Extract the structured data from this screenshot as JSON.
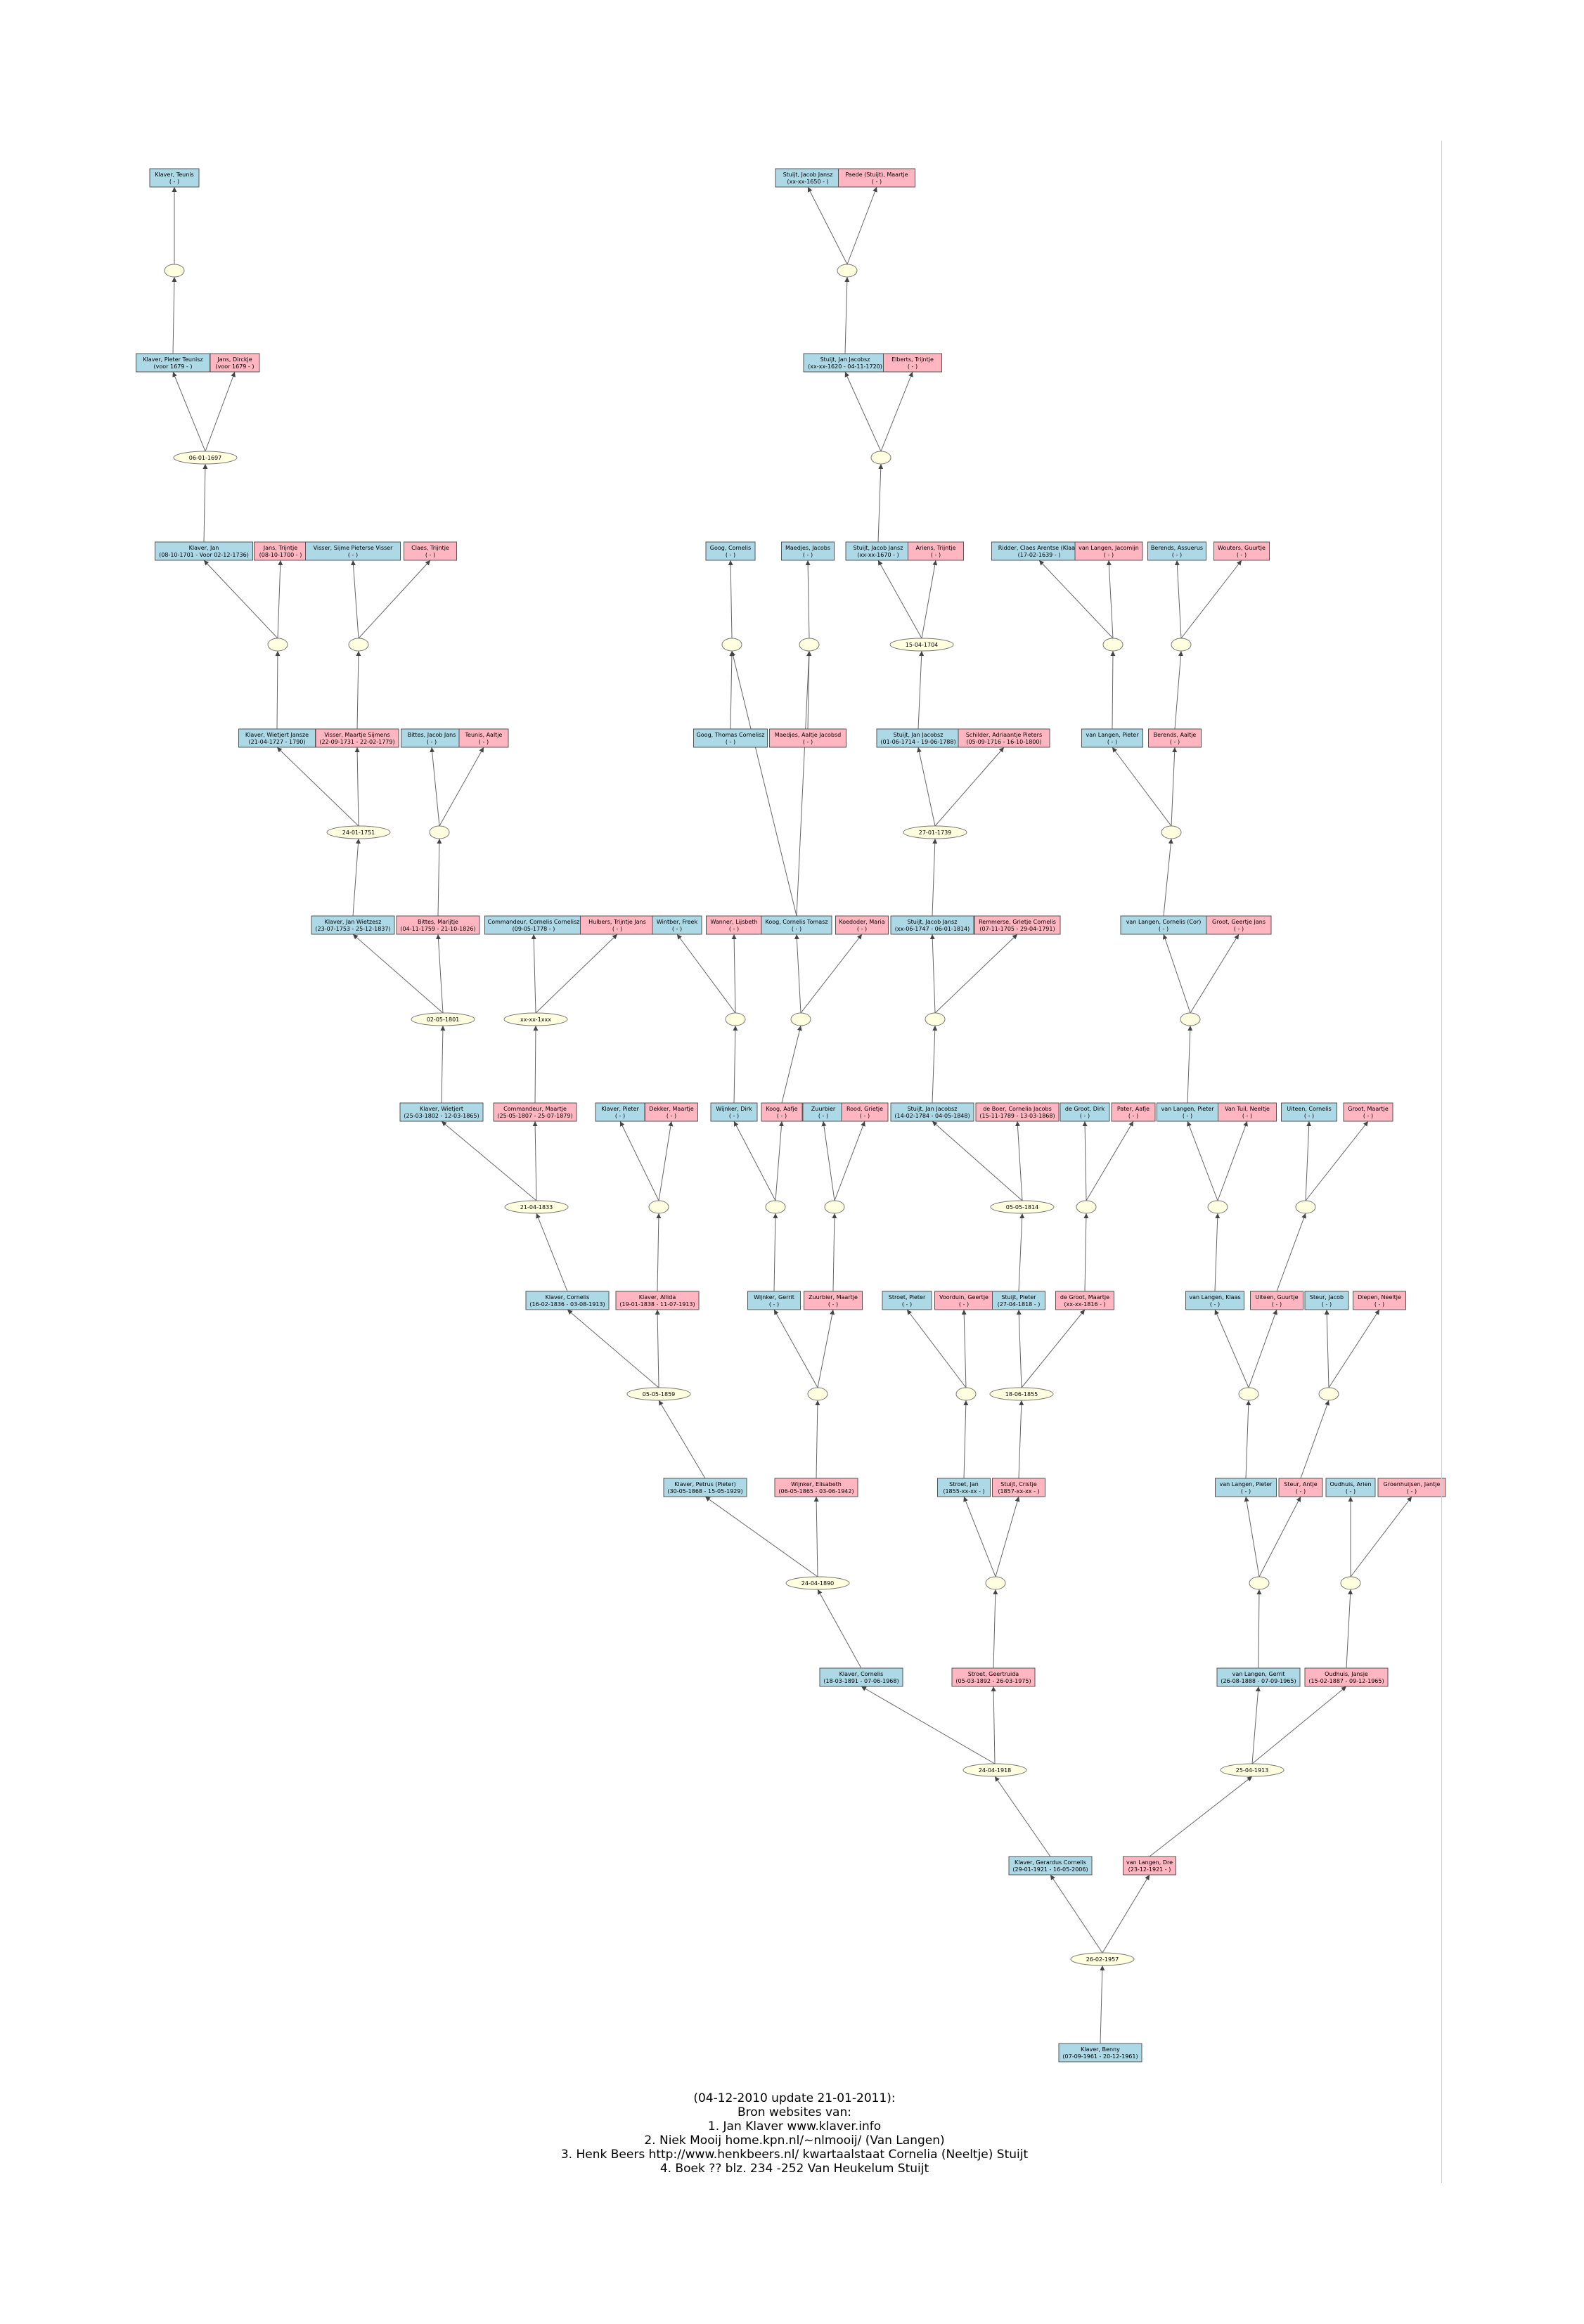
{
  "colors": {
    "male": "#add8e6",
    "female": "#ffb6c1",
    "union": "#ffffe0",
    "edge": "#666666"
  },
  "persons": [
    {
      "id": "p_teunis",
      "sex": "m",
      "name": "Klaver, Teunis",
      "dates": "( - )"
    },
    {
      "id": "p_pieter_t",
      "sex": "m",
      "name": "Klaver, Pieter Teunisz",
      "dates": "(voor 1679 - )"
    },
    {
      "id": "p_dirckje",
      "sex": "f",
      "name": "Jans, Dirckje",
      "dates": "(voor 1679 - )"
    },
    {
      "id": "p_jan_k",
      "sex": "m",
      "name": "Klaver, Jan",
      "dates": "(08-10-1701 - Voor 02-12-1736)"
    },
    {
      "id": "p_trijntje_j",
      "sex": "f",
      "name": "Jans, Trijntje",
      "dates": "(08-10-1700 - )"
    },
    {
      "id": "p_sijme",
      "sex": "m",
      "name": "Visser, Sijme Pieterse Visser",
      "dates": "( - )"
    },
    {
      "id": "p_trijntje_c",
      "sex": "f",
      "name": "Claes, Trijntje",
      "dates": "( - )"
    },
    {
      "id": "p_jacob_s1",
      "sex": "m",
      "name": "Stuijt, Jacob Jansz",
      "dates": "(xx-xx-1650 - )"
    },
    {
      "id": "p_maartje_p",
      "sex": "f",
      "name": "Paede (Stuijt), Maartje",
      "dates": "( - )"
    },
    {
      "id": "p_jan_s",
      "sex": "m",
      "name": "Stuijt, Jan Jacobsz",
      "dates": "(xx-xx-1620 - 04-11-1720)"
    },
    {
      "id": "p_trijntje_e",
      "sex": "f",
      "name": "Elberts, Trijntje",
      "dates": "( - )"
    },
    {
      "id": "p_cornelis_g",
      "sex": "m",
      "name": "Goog, Cornelis",
      "dates": "( - )"
    },
    {
      "id": "p_jacobs_m",
      "sex": "m",
      "name": "Maedjes, Jacobs",
      "dates": "( - )"
    },
    {
      "id": "p_jacob_s2",
      "sex": "m",
      "name": "Stuijt, Jacob Jansz",
      "dates": "(xx-xx-1670 - )"
    },
    {
      "id": "p_trijntje_a",
      "sex": "f",
      "name": "Ariens, Trijntje",
      "dates": "( - )"
    },
    {
      "id": "p_claes",
      "sex": "m",
      "name": "Ridder, Claes Arentse (Klaas)",
      "dates": "(17-02-1639 - )"
    },
    {
      "id": "p_jacomijn",
      "sex": "f",
      "name": "van Langen, Jacomijn",
      "dates": "( - )"
    },
    {
      "id": "p_assuerus",
      "sex": "m",
      "name": "Berends, Assuerus",
      "dates": "( - )"
    },
    {
      "id": "p_guurtje_w",
      "sex": "f",
      "name": "Wouters, Guurtje",
      "dates": "( - )"
    },
    {
      "id": "p_wietjert",
      "sex": "m",
      "name": "Klaver, Wietjert Jansze",
      "dates": "(21-04-1727 - 1790)"
    },
    {
      "id": "p_maartje_v",
      "sex": "f",
      "name": "Visser, Maartje Sijmens",
      "dates": "(22-09-1731 - 22-02-1779)"
    },
    {
      "id": "p_jacob_b",
      "sex": "m",
      "name": "Bittes, Jacob Jans",
      "dates": "( - )"
    },
    {
      "id": "p_aaltje_t",
      "sex": "f",
      "name": "Teunis, Aaltje",
      "dates": "( - )"
    },
    {
      "id": "p_thomas",
      "sex": "m",
      "name": "Goog, Thomas Cornelisz",
      "dates": "( - )"
    },
    {
      "id": "p_aaltje_m",
      "sex": "f",
      "name": "Maedjes, Aaltje Jacobsd",
      "dates": "( - )"
    },
    {
      "id": "p_jan_s2",
      "sex": "m",
      "name": "Stuijt, Jan Jacobsz",
      "dates": "(01-06-1714 - 19-06-1788)"
    },
    {
      "id": "p_adriaantje",
      "sex": "f",
      "name": "Schilder, Adriaantje Pieters",
      "dates": "(05-09-1716 - 16-10-1800)"
    },
    {
      "id": "p_pieter_l1",
      "sex": "m",
      "name": "van Langen, Pieter",
      "dates": "( - )"
    },
    {
      "id": "p_aaltje_b",
      "sex": "f",
      "name": "Berends, Aaltje",
      "dates": "( - )"
    },
    {
      "id": "p_jan_w",
      "sex": "m",
      "name": "Klaver, Jan Wietzesz",
      "dates": "(23-07-1753 - 25-12-1837)"
    },
    {
      "id": "p_marijtje_b",
      "sex": "f",
      "name": "Bittes, Marijtje",
      "dates": "(04-11-1759 - 21-10-1826)"
    },
    {
      "id": "p_cornelis_c",
      "sex": "m",
      "name": "Commandeur, Cornelis Cornelisz",
      "dates": "(09-05-1778 - )"
    },
    {
      "id": "p_trijntje_h",
      "sex": "f",
      "name": "Hulbers, Trijntje Jans",
      "dates": "( - )"
    },
    {
      "id": "p_freek",
      "sex": "m",
      "name": "Wintber, Freek",
      "dates": "( - )"
    },
    {
      "id": "p_lijsbeth",
      "sex": "f",
      "name": "Wanner, Lijsbeth",
      "dates": "( - )"
    },
    {
      "id": "p_cornelis_k",
      "sex": "m",
      "name": "Koog, Cornelis Tomasz",
      "dates": "( - )"
    },
    {
      "id": "p_maria",
      "sex": "f",
      "name": "Koedoder, Maria",
      "dates": "( - )"
    },
    {
      "id": "p_jacob_s3",
      "sex": "m",
      "name": "Stuijt, Jacob Jansz",
      "dates": "(xx-06-1747 - 06-01-1814)"
    },
    {
      "id": "p_grietje_c",
      "sex": "f",
      "name": "Remmerse, Grietje Cornelis",
      "dates": "(07-11-1705 - 29-04-1791)"
    },
    {
      "id": "p_cornelis_l",
      "sex": "m",
      "name": "van Langen, Cornelis (Cor)",
      "dates": "( - )"
    },
    {
      "id": "p_geertje",
      "sex": "f",
      "name": "Groot, Geertje Jans",
      "dates": "( - )"
    },
    {
      "id": "p_wietjert2",
      "sex": "m",
      "name": "Klaver, Wietjert",
      "dates": "(25-03-1802 - 12-03-1865)"
    },
    {
      "id": "p_maartje_c",
      "sex": "f",
      "name": "Commandeur, Maartje",
      "dates": "(25-05-1807 - 25-07-1879)"
    },
    {
      "id": "p_pieter_k",
      "sex": "m",
      "name": "Klaver, Pieter",
      "dates": "( - )"
    },
    {
      "id": "p_maartje_d",
      "sex": "f",
      "name": "Dekker, Maartje",
      "dates": "( - )"
    },
    {
      "id": "p_dirk_w",
      "sex": "m",
      "name": "Wijnker, Dirk",
      "dates": "( - )"
    },
    {
      "id": "p_aafje_k",
      "sex": "f",
      "name": "Koog, Aafje",
      "dates": "( - )"
    },
    {
      "id": "p_zuurbier",
      "sex": "m",
      "name": "Zuurbier",
      "dates": "( - )"
    },
    {
      "id": "p_grietje_r",
      "sex": "f",
      "name": "Rood, Grietje",
      "dates": "( - )"
    },
    {
      "id": "p_jan_s3",
      "sex": "m",
      "name": "Stuijt, Jan Jacobsz",
      "dates": "(14-02-1784 - 04-05-1848)"
    },
    {
      "id": "p_cornelia_b",
      "sex": "f",
      "name": "de Boer, Cornelia Jacobs",
      "dates": "(15-11-1789 - 13-03-1868)"
    },
    {
      "id": "p_dirk_g",
      "sex": "m",
      "name": "de Groot, Dirk",
      "dates": "( - )"
    },
    {
      "id": "p_aafje_p",
      "sex": "f",
      "name": "Pater, Aafje",
      "dates": "( - )"
    },
    {
      "id": "p_pieter_l2",
      "sex": "m",
      "name": "van Langen, Pieter",
      "dates": "( - )"
    },
    {
      "id": "p_neeltje_v",
      "sex": "f",
      "name": "Van Tuil, Neeltje",
      "dates": "( - )"
    },
    {
      "id": "p_cornelis_u",
      "sex": "m",
      "name": "Uiteen, Cornelis",
      "dates": "( - )"
    },
    {
      "id": "p_maartje_g",
      "sex": "f",
      "name": "Groot, Maartje",
      "dates": "( - )"
    },
    {
      "id": "p_cornelis_k2",
      "sex": "m",
      "name": "Klaver, Cornelis",
      "dates": "(16-02-1836 - 03-08-1913)"
    },
    {
      "id": "p_allida",
      "sex": "f",
      "name": "Klaver, Allida",
      "dates": "(19-01-1838 - 11-07-1913)"
    },
    {
      "id": "p_gerrit_w",
      "sex": "m",
      "name": "Wijnker, Gerrit",
      "dates": "( - )"
    },
    {
      "id": "p_maartje_z",
      "sex": "f",
      "name": "Zuurbier, Maartje",
      "dates": "( - )"
    },
    {
      "id": "p_pieter_s",
      "sex": "m",
      "name": "Stroet, Pieter",
      "dates": "( - )"
    },
    {
      "id": "p_geertje_v",
      "sex": "f",
      "name": "Voorduin, Geertje",
      "dates": "( - )"
    },
    {
      "id": "p_pieter_s2",
      "sex": "m",
      "name": "Stuijt, Pieter",
      "dates": "(27-04-1818 - )"
    },
    {
      "id": "p_maartje_dg",
      "sex": "f",
      "name": "de Groot, Maartje",
      "dates": "(xx-xx-1816 - )"
    },
    {
      "id": "p_klaas_l",
      "sex": "m",
      "name": "van Langen, Klaas",
      "dates": "( - )"
    },
    {
      "id": "p_guurtje_u",
      "sex": "f",
      "name": "Uiteen, Guurtje",
      "dates": "( - )"
    },
    {
      "id": "p_jacob_st",
      "sex": "m",
      "name": "Steur, Jacob",
      "dates": "( - )"
    },
    {
      "id": "p_neeltje_d",
      "sex": "f",
      "name": "Diepen, Neeltje",
      "dates": "( - )"
    },
    {
      "id": "p_petrus",
      "sex": "m",
      "name": "Klaver, Petrus (Pieter)",
      "dates": "(30-05-1868 - 15-05-1929)"
    },
    {
      "id": "p_elisabeth",
      "sex": "f",
      "name": "Wijnker, Elisabeth",
      "dates": "(06-05-1865 - 03-06-1942)"
    },
    {
      "id": "p_jan_st",
      "sex": "m",
      "name": "Stroet, Jan",
      "dates": "(1855-xx-xx - )"
    },
    {
      "id": "p_cristje",
      "sex": "f",
      "name": "Stuijt, Cristje",
      "dates": "(1857-xx-xx - )"
    },
    {
      "id": "p_pieter_l3",
      "sex": "m",
      "name": "van Langen, Pieter",
      "dates": "( - )"
    },
    {
      "id": "p_antje_s",
      "sex": "f",
      "name": "Steur, Antje",
      "dates": "( - )"
    },
    {
      "id": "p_arien_o",
      "sex": "m",
      "name": "Oudhuis, Arien",
      "dates": "( - )"
    },
    {
      "id": "p_jantje_g",
      "sex": "f",
      "name": "Groenhuijsen, Jantje",
      "dates": "( - )"
    },
    {
      "id": "p_cornelis_k3",
      "sex": "m",
      "name": "Klaver, Cornelis",
      "dates": "(18-03-1891 - 07-06-1968)"
    },
    {
      "id": "p_geertruida",
      "sex": "f",
      "name": "Stroet, Geertruida",
      "dates": "(05-03-1892 - 26-03-1975)"
    },
    {
      "id": "p_gerrit_l",
      "sex": "m",
      "name": "van Langen, Gerrit",
      "dates": "(26-08-1888 - 07-09-1965)"
    },
    {
      "id": "p_jansje",
      "sex": "f",
      "name": "Oudhuis, Jansje",
      "dates": "(15-02-1887 - 09-12-1965)"
    },
    {
      "id": "p_gerardus",
      "sex": "m",
      "name": "Klaver, Gerardus Cornelis",
      "dates": "(29-01-1921 - 16-05-2006)"
    },
    {
      "id": "p_dre",
      "sex": "f",
      "name": "van Langen, Dre",
      "dates": "(23-12-1921 - )"
    },
    {
      "id": "p_benny",
      "sex": "m",
      "name": "Klaver, Benny",
      "dates": "(07-09-1961 - 20-12-1961)"
    }
  ],
  "unions": [
    {
      "id": "u_a",
      "label": ""
    },
    {
      "id": "u_b",
      "label": "06-01-1697"
    },
    {
      "id": "u_c",
      "label": ""
    },
    {
      "id": "u_d",
      "label": ""
    },
    {
      "id": "u_e",
      "label": ""
    },
    {
      "id": "u_f",
      "label": "24-01-1751"
    },
    {
      "id": "u_g",
      "label": ""
    },
    {
      "id": "u_h",
      "label": ""
    },
    {
      "id": "u_i",
      "label": ""
    },
    {
      "id": "u_j",
      "label": "15-04-1704"
    },
    {
      "id": "u_k",
      "label": ""
    },
    {
      "id": "u_l",
      "label": ""
    },
    {
      "id": "u_m",
      "label": ""
    },
    {
      "id": "u_n",
      "label": "27-01-1739"
    },
    {
      "id": "u_o",
      "label": ""
    },
    {
      "id": "u_p",
      "label": "02-05-1801"
    },
    {
      "id": "u_q",
      "label": "xx-xx-1xxx"
    },
    {
      "id": "u_r",
      "label": ""
    },
    {
      "id": "u_s",
      "label": ""
    },
    {
      "id": "u_t",
      "label": ""
    },
    {
      "id": "u_u",
      "label": ""
    },
    {
      "id": "u_v",
      "label": "21-04-1833"
    },
    {
      "id": "u_w",
      "label": ""
    },
    {
      "id": "u_x",
      "label": ""
    },
    {
      "id": "u_y",
      "label": ""
    },
    {
      "id": "u_z",
      "label": "05-05-1814"
    },
    {
      "id": "u_aa",
      "label": ""
    },
    {
      "id": "u_ab",
      "label": ""
    },
    {
      "id": "u_ac",
      "label": ""
    },
    {
      "id": "u_ad",
      "label": "05-05-1859"
    },
    {
      "id": "u_ae",
      "label": ""
    },
    {
      "id": "u_af",
      "label": ""
    },
    {
      "id": "u_ag",
      "label": "18-06-1855"
    },
    {
      "id": "u_ah",
      "label": ""
    },
    {
      "id": "u_ai",
      "label": ""
    },
    {
      "id": "u_aj",
      "label": "24-04-1890"
    },
    {
      "id": "u_ak",
      "label": ""
    },
    {
      "id": "u_al",
      "label": ""
    },
    {
      "id": "u_am",
      "label": ""
    },
    {
      "id": "u_an",
      "label": "24-04-1918"
    },
    {
      "id": "u_ao",
      "label": "25-04-1913"
    },
    {
      "id": "u_ap",
      "label": "26-02-1957"
    }
  ],
  "footer": {
    "line1": "(04-12-2010 update 21-01-2011):",
    "line2": "Bron websites van:",
    "line3": "1. Jan Klaver  www.klaver.info",
    "line4": "2. Niek Mooij home.kpn.nl/~nlmooij/  (Van Langen)",
    "line5": "3. Henk Beers http://www.henkbeers.nl/ kwartaalstaat Cornelia (Neeltje) Stuijt",
    "line6": "4. Boek ?? blz. 234 -252 Van Heukelum Stuijt"
  }
}
